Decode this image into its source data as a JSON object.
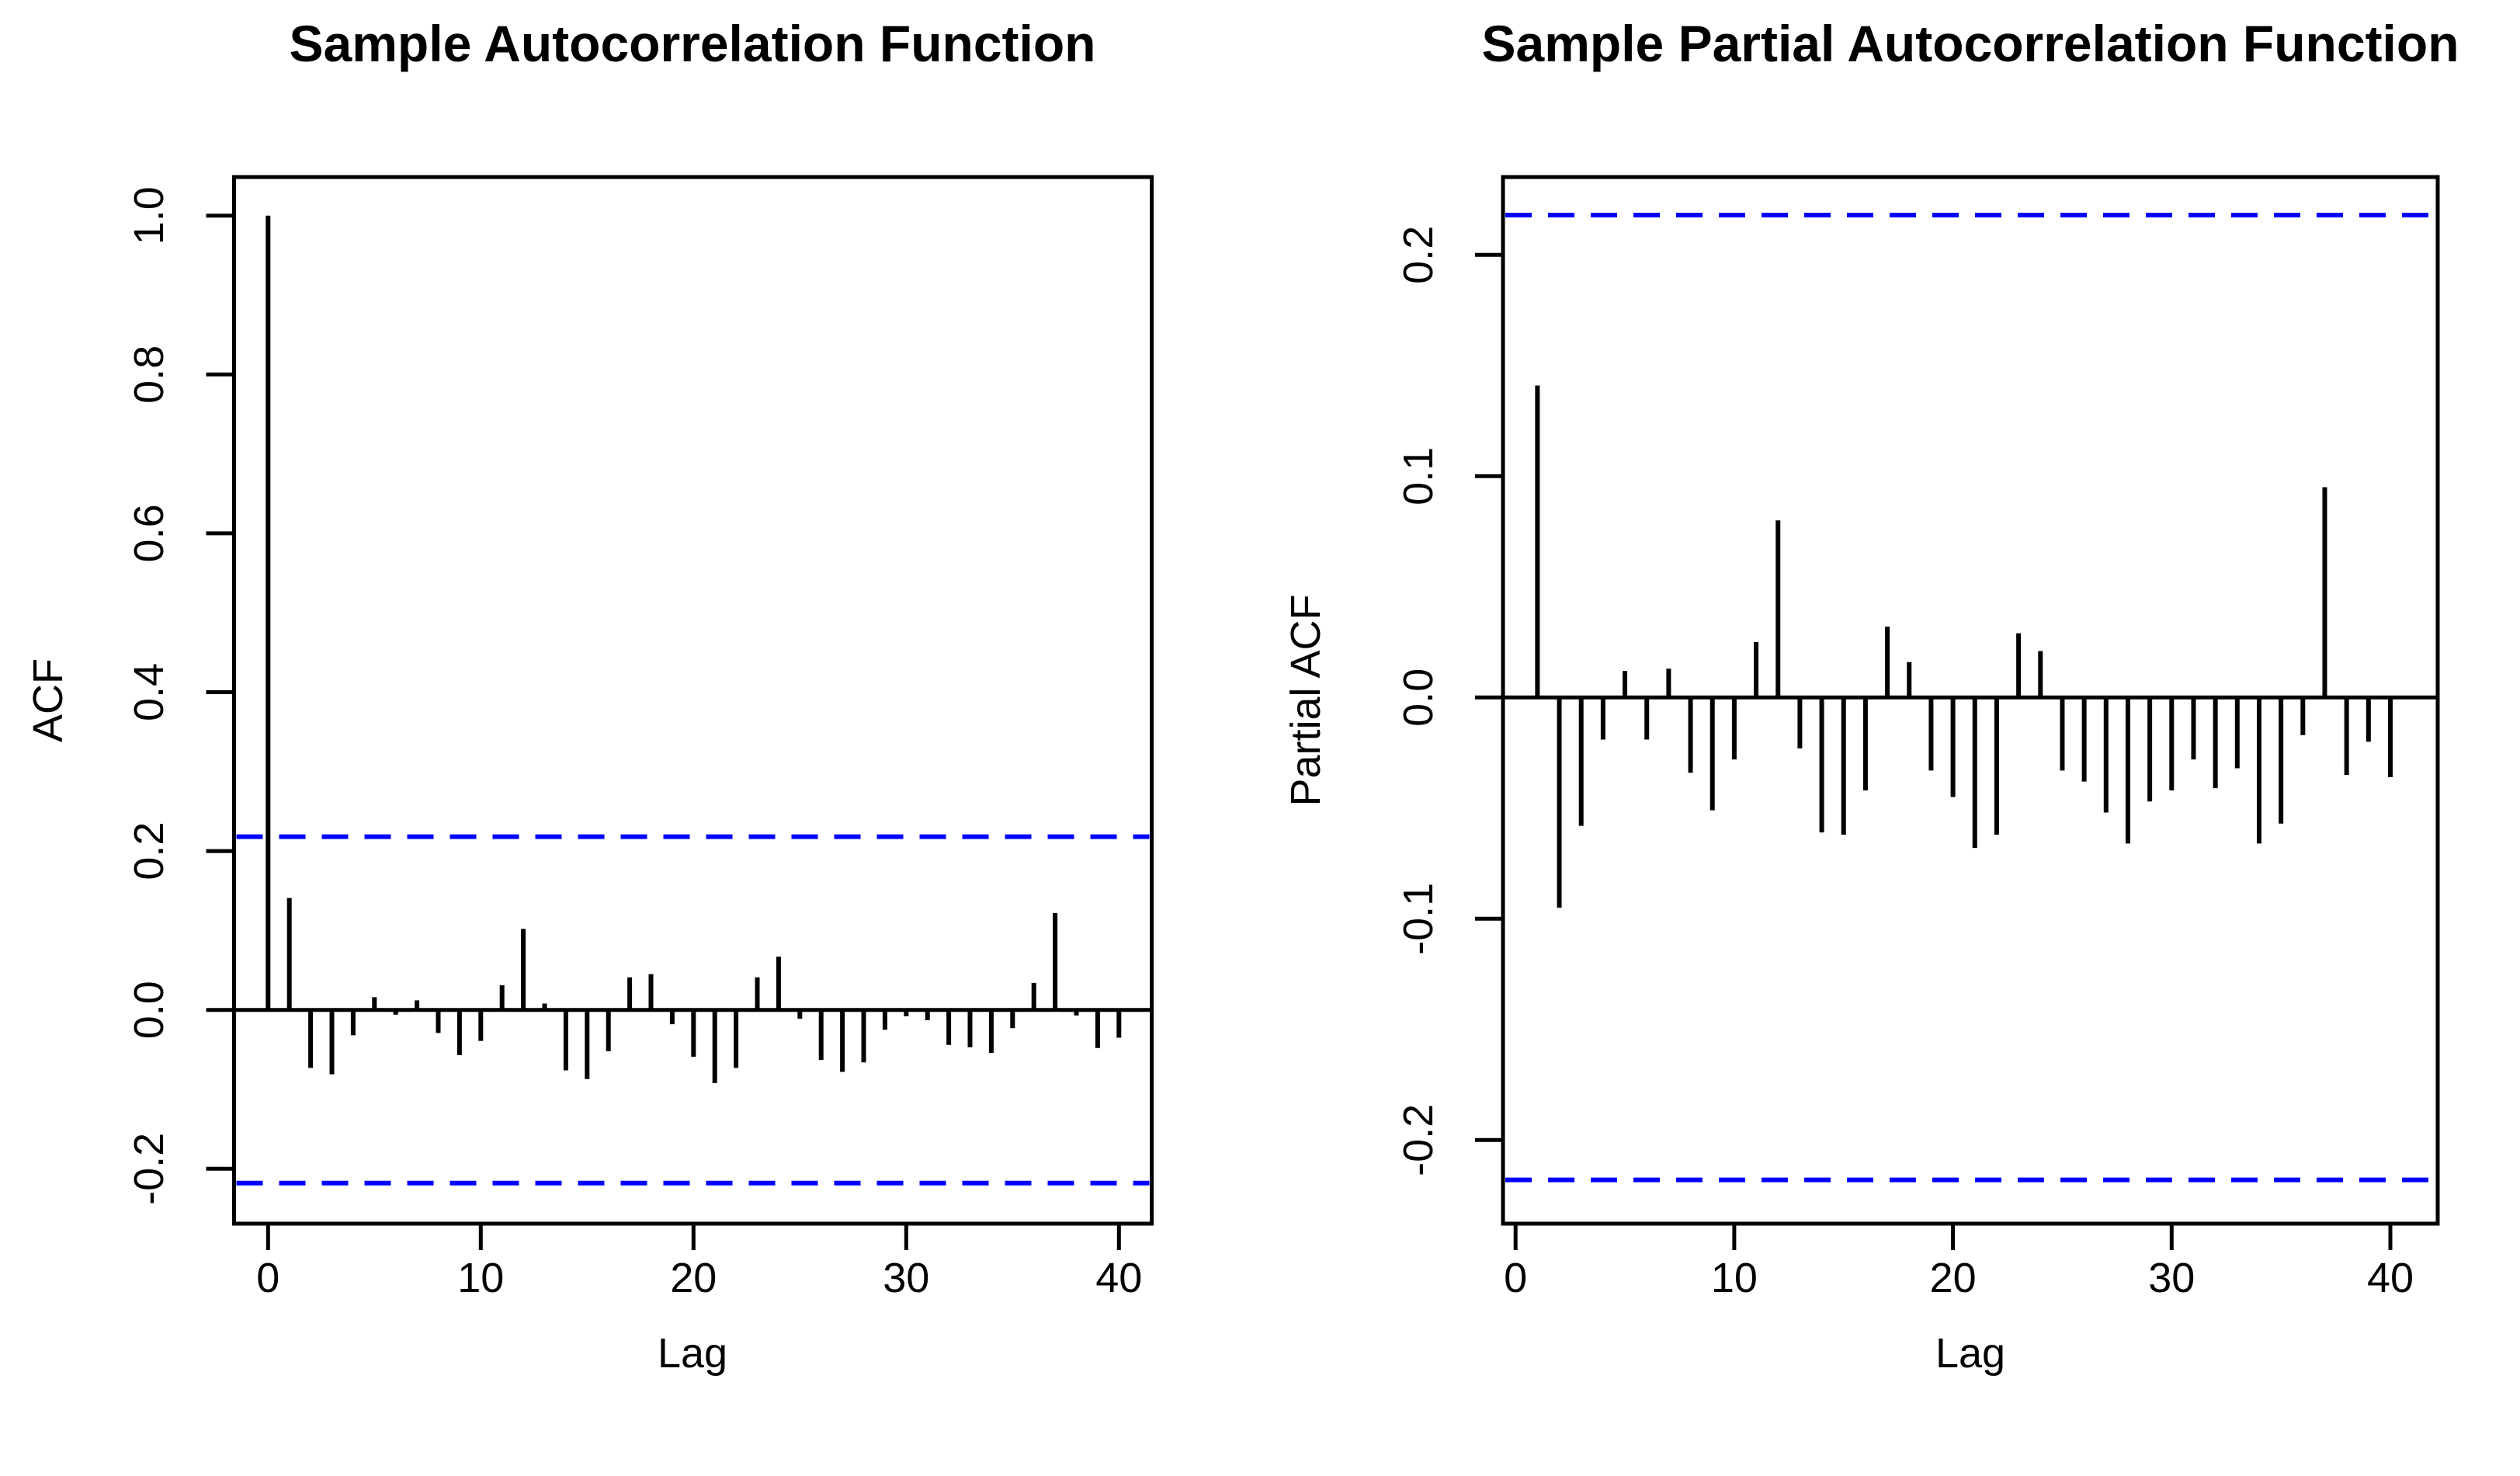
{
  "page": {
    "background": "#ffffff",
    "bar_color": "#000000",
    "confidence_line_color": "#0000FF",
    "axis_color": "#000000"
  },
  "chart_data": [
    {
      "id": "acf",
      "type": "bar",
      "title": "Sample Autocorrelation Function",
      "xlabel": "Lag",
      "ylabel": "ACF",
      "grid": false,
      "legend": null,
      "confidence_bound": 0.218,
      "confidence_line_style": "dashed",
      "xlim": [
        -1.6,
        41.5
      ],
      "ylim": [
        -0.268,
        1.051
      ],
      "x_ticks": [
        0,
        10,
        20,
        30,
        40
      ],
      "x_tick_labels": [
        "0",
        "10",
        "20",
        "30",
        "40"
      ],
      "y_ticks": [
        1.0,
        0.8,
        0.6,
        0.4,
        0.2,
        0.0,
        -0.2
      ],
      "y_tick_labels": [
        "1.0",
        "0.8",
        "0.6",
        "0.4",
        "0.2",
        "0.0",
        "-0.2"
      ],
      "lags": [
        0,
        1,
        2,
        3,
        4,
        5,
        6,
        7,
        8,
        9,
        10,
        11,
        12,
        13,
        14,
        15,
        16,
        17,
        18,
        19,
        20,
        21,
        22,
        23,
        24,
        25,
        26,
        27,
        28,
        29,
        30,
        31,
        32,
        33,
        34,
        35,
        36,
        37,
        38,
        39,
        40
      ],
      "values": [
        1.0,
        0.141,
        -0.073,
        -0.081,
        -0.032,
        0.016,
        -0.006,
        0.012,
        -0.029,
        -0.057,
        -0.039,
        0.031,
        0.102,
        0.008,
        -0.076,
        -0.087,
        -0.052,
        0.041,
        0.045,
        -0.018,
        -0.059,
        -0.092,
        -0.073,
        0.041,
        0.067,
        -0.011,
        -0.063,
        -0.078,
        -0.066,
        -0.025,
        -0.008,
        -0.013,
        -0.044,
        -0.047,
        -0.054,
        -0.023,
        0.034,
        0.122,
        -0.007,
        -0.048,
        -0.035
      ]
    },
    {
      "id": "pacf",
      "type": "bar",
      "title": "Sample Partial Autocorrelation Function",
      "xlabel": "Lag",
      "ylabel": "Partial ACF",
      "grid": false,
      "legend": null,
      "confidence_bound": 0.218,
      "confidence_line_style": "dashed",
      "xlim": [
        -0.6,
        42.1
      ],
      "ylim": [
        -0.238,
        0.236
      ],
      "x_ticks": [
        0,
        10,
        20,
        30,
        40
      ],
      "x_tick_labels": [
        "0",
        "10",
        "20",
        "30",
        "40"
      ],
      "y_ticks": [
        0.2,
        0.1,
        0.0,
        -0.1,
        -0.2
      ],
      "y_tick_labels": [
        "0.2",
        "0.1",
        "0.0",
        "-0.1",
        "-0.2"
      ],
      "lags": [
        1,
        2,
        3,
        4,
        5,
        6,
        7,
        8,
        9,
        10,
        11,
        12,
        13,
        14,
        15,
        16,
        17,
        18,
        19,
        20,
        21,
        22,
        23,
        24,
        25,
        26,
        27,
        28,
        29,
        30,
        31,
        32,
        33,
        34,
        35,
        36,
        37,
        38,
        39,
        40
      ],
      "values": [
        0.141,
        -0.095,
        -0.058,
        -0.019,
        0.012,
        -0.019,
        0.013,
        -0.034,
        -0.051,
        -0.028,
        0.025,
        0.08,
        -0.023,
        -0.061,
        -0.062,
        -0.042,
        0.032,
        0.016,
        -0.033,
        -0.045,
        -0.068,
        -0.062,
        0.029,
        0.021,
        -0.033,
        -0.038,
        -0.052,
        -0.066,
        -0.047,
        -0.042,
        -0.028,
        -0.041,
        -0.032,
        -0.066,
        -0.057,
        -0.017,
        0.095,
        -0.035,
        -0.02,
        -0.036
      ]
    }
  ]
}
